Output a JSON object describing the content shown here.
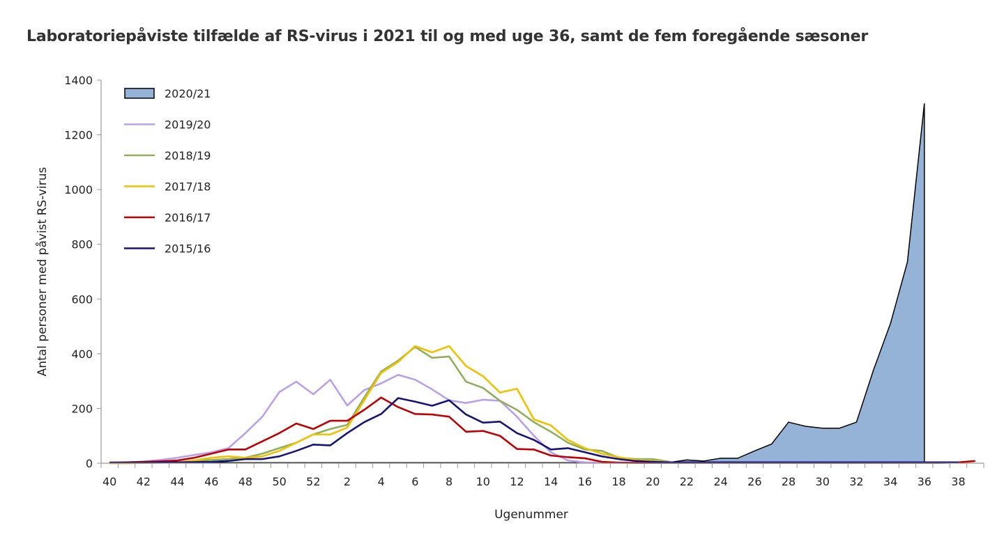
{
  "chart_data": {
    "type": "line",
    "title": "Laboratoriepåviste tilfælde af RS-virus i 2021 til og med uge 36, samt de fem foregående sæsoner",
    "xlabel": "Ugenummer",
    "ylabel": "Antal personer med påvist RS-virus",
    "ylim": [
      0,
      1400
    ],
    "y_ticks": [
      0,
      200,
      400,
      600,
      800,
      1000,
      1200,
      1400
    ],
    "categories": [
      40,
      41,
      42,
      43,
      44,
      45,
      46,
      47,
      48,
      49,
      50,
      51,
      52,
      1,
      2,
      3,
      4,
      5,
      6,
      7,
      8,
      9,
      10,
      11,
      12,
      13,
      14,
      15,
      16,
      17,
      18,
      19,
      20,
      21,
      22,
      23,
      24,
      25,
      26,
      27,
      28,
      29,
      30,
      31,
      32,
      33,
      34,
      35,
      36,
      37,
      38,
      39
    ],
    "x_tick_labels": [
      "40",
      "42",
      "44",
      "46",
      "48",
      "50",
      "52",
      "2",
      "4",
      "6",
      "8",
      "10",
      "12",
      "14",
      "16",
      "18",
      "20",
      "22",
      "24",
      "26",
      "28",
      "30",
      "32",
      "34",
      "36",
      "38"
    ],
    "grid": false,
    "legend_position": "top-left",
    "series": [
      {
        "name": "2020/21",
        "style": "area",
        "color": "#95b3d7",
        "stroke": "#000000",
        "values": [
          2,
          2,
          2,
          2,
          2,
          2,
          2,
          2,
          2,
          2,
          2,
          2,
          2,
          2,
          2,
          2,
          2,
          2,
          2,
          2,
          2,
          2,
          2,
          2,
          2,
          2,
          2,
          2,
          2,
          2,
          2,
          3,
          10,
          3,
          12,
          8,
          18,
          18,
          45,
          70,
          150,
          135,
          128,
          128,
          150,
          340,
          510,
          735,
          1315,
          null,
          null,
          null
        ]
      },
      {
        "name": "2019/20",
        "style": "line",
        "color": "#b9a0ec",
        "values": [
          2,
          3,
          6,
          12,
          20,
          30,
          40,
          55,
          110,
          170,
          260,
          298,
          252,
          305,
          211,
          267,
          292,
          323,
          305,
          270,
          230,
          220,
          232,
          228,
          170,
          100,
          40,
          10,
          3,
          2,
          1,
          1,
          1,
          null,
          null,
          null,
          null,
          null,
          null,
          null,
          null,
          null,
          null,
          null,
          null,
          null,
          null,
          null,
          null,
          null,
          null,
          null
        ]
      },
      {
        "name": "2018/19",
        "style": "line",
        "color": "#8fb05a",
        "values": [
          0,
          0,
          1,
          2,
          3,
          8,
          12,
          15,
          20,
          35,
          55,
          75,
          105,
          125,
          140,
          240,
          335,
          375,
          425,
          385,
          390,
          298,
          275,
          228,
          195,
          150,
          115,
          75,
          50,
          45,
          20,
          15,
          15,
          5,
          null,
          null,
          null,
          null,
          null,
          null,
          null,
          null,
          null,
          null,
          null,
          null,
          null,
          null,
          null,
          null,
          null,
          null
        ]
      },
      {
        "name": "2017/18",
        "style": "line",
        "color": "#f2c000",
        "values": [
          0,
          0,
          1,
          2,
          3,
          10,
          20,
          25,
          20,
          25,
          45,
          75,
          105,
          105,
          130,
          230,
          330,
          370,
          428,
          405,
          428,
          355,
          318,
          258,
          272,
          160,
          138,
          85,
          55,
          35,
          22,
          12,
          8,
          3,
          null,
          null,
          null,
          null,
          null,
          null,
          null,
          null,
          null,
          null,
          null,
          null,
          null,
          null,
          null,
          null,
          null,
          null
        ]
      },
      {
        "name": "2016/17",
        "style": "line",
        "color": "#c00000",
        "values": [
          2,
          3,
          5,
          7,
          10,
          20,
          35,
          50,
          50,
          80,
          110,
          145,
          125,
          155,
          155,
          195,
          240,
          205,
          180,
          178,
          170,
          115,
          118,
          100,
          52,
          50,
          28,
          22,
          18,
          5,
          2,
          1,
          1,
          1,
          1,
          1,
          1,
          1,
          1,
          1,
          1,
          1,
          1,
          1,
          1,
          1,
          1,
          1,
          1,
          1,
          3,
          8
        ]
      },
      {
        "name": "2015/16",
        "style": "line",
        "color": "#14147a",
        "values": [
          2,
          2,
          2,
          3,
          3,
          4,
          5,
          8,
          15,
          15,
          25,
          45,
          68,
          65,
          110,
          150,
          180,
          238,
          225,
          210,
          230,
          178,
          148,
          152,
          110,
          85,
          50,
          55,
          40,
          25,
          15,
          8,
          5,
          3,
          3,
          3,
          3,
          3,
          3,
          3,
          3,
          3,
          3,
          3,
          3,
          3,
          3,
          3,
          3,
          3,
          3,
          null
        ]
      }
    ]
  }
}
